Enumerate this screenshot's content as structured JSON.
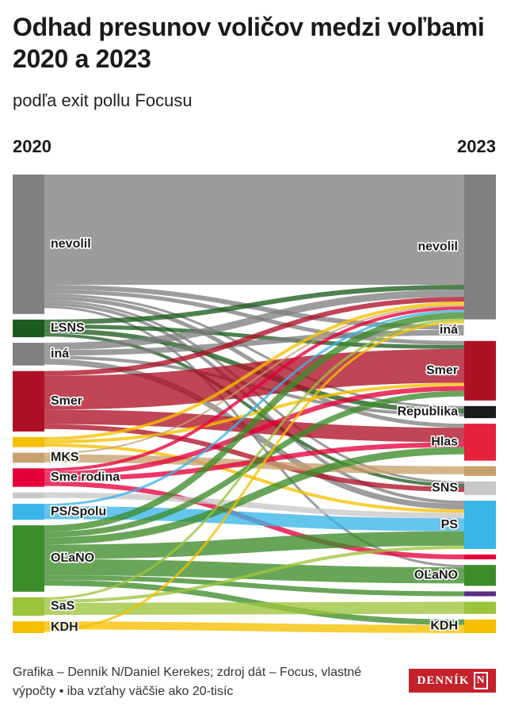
{
  "header": {
    "title": "Odhad presunov voličov medzi voľbami 2020 a 2023",
    "subtitle": "podľa exit pollu Focusu"
  },
  "year_left": "2020",
  "year_right": "2023",
  "chart_data": {
    "type": "sankey",
    "unit": "thousand voters (approx.)",
    "left_nodes": [
      {
        "id": "nevolil",
        "label": "nevolil",
        "value": 1660,
        "color": "#808080"
      },
      {
        "id": "lsns",
        "label": "ĽSNS",
        "value": 210,
        "color": "#1d5c1f"
      },
      {
        "id": "ina",
        "label": "iná",
        "value": 270,
        "color": "#808080"
      },
      {
        "id": "smer",
        "label": "Smer",
        "value": 720,
        "color": "#ae1126"
      },
      {
        "id": "sr",
        "label": "",
        "value": 120,
        "color": "#f5c000"
      },
      {
        "id": "mks",
        "label": "MKS",
        "value": 120,
        "color": "#c8a06e"
      },
      {
        "id": "smerodina",
        "label": "Sme rodina",
        "value": 220,
        "color": "#e5003b"
      },
      {
        "id": "za",
        "label": "",
        "value": 70,
        "color": "#c8c8c8"
      },
      {
        "id": "psspolu",
        "label": "PS/Spolu",
        "value": 190,
        "color": "#39b5e8"
      },
      {
        "id": "olano",
        "label": "OĽaNO",
        "value": 790,
        "color": "#3d8c2a"
      },
      {
        "id": "sas",
        "label": "SaS",
        "value": 220,
        "color": "#9cc43c"
      },
      {
        "id": "kdh",
        "label": "KDH",
        "value": 140,
        "color": "#f5c000"
      }
    ],
    "right_nodes": [
      {
        "id": "nevolil",
        "label": "nevolil",
        "value": 1800,
        "color": "#808080"
      },
      {
        "id": "ina",
        "label": "iná",
        "value": 130,
        "color": "#ffffff"
      },
      {
        "id": "smer",
        "label": "Smer",
        "value": 740,
        "color": "#ae1126"
      },
      {
        "id": "republika",
        "label": "Republika",
        "value": 150,
        "color": "#1a1a1a"
      },
      {
        "id": "hlas",
        "label": "Hlas",
        "value": 460,
        "color": "#e5213c"
      },
      {
        "id": "r_mks",
        "label": "",
        "value": 120,
        "color": "#c8a06e"
      },
      {
        "id": "sns",
        "label": "SNS",
        "value": 170,
        "color": "#c8c8c8"
      },
      {
        "id": "ps",
        "label": "PS",
        "value": 600,
        "color": "#39b5e8"
      },
      {
        "id": "r_sr",
        "label": "",
        "value": 60,
        "color": "#e5003b"
      },
      {
        "id": "olano",
        "label": "OĽaNO",
        "value": 260,
        "color": "#3d8c2a"
      },
      {
        "id": "r_dv",
        "label": "",
        "value": 60,
        "color": "#5b2d83"
      },
      {
        "id": "r_sas",
        "label": "",
        "value": 150,
        "color": "#9cc43c"
      },
      {
        "id": "kdh",
        "label": "KDH",
        "value": 170,
        "color": "#f5c000"
      }
    ],
    "links": [
      {
        "from": "nevolil",
        "to": "nevolil",
        "value": 1370
      },
      {
        "from": "nevolil",
        "to": "ina",
        "value": 60
      },
      {
        "from": "nevolil",
        "to": "smer",
        "value": 50
      },
      {
        "from": "nevolil",
        "to": "republika",
        "value": 30
      },
      {
        "from": "nevolil",
        "to": "hlas",
        "value": 50
      },
      {
        "from": "nevolil",
        "to": "sns",
        "value": 30
      },
      {
        "from": "nevolil",
        "to": "ps",
        "value": 40
      },
      {
        "from": "nevolil",
        "to": "olano",
        "value": 30
      },
      {
        "from": "lsns",
        "to": "nevolil",
        "value": 60
      },
      {
        "from": "lsns",
        "to": "smer",
        "value": 50
      },
      {
        "from": "lsns",
        "to": "republika",
        "value": 60
      },
      {
        "from": "lsns",
        "to": "sns",
        "value": 40
      },
      {
        "from": "ina",
        "to": "nevolil",
        "value": 90
      },
      {
        "from": "ina",
        "to": "ina",
        "value": 70
      },
      {
        "from": "ina",
        "to": "republika",
        "value": 40
      },
      {
        "from": "ina",
        "to": "ps",
        "value": 70
      },
      {
        "from": "smer",
        "to": "nevolil",
        "value": 60
      },
      {
        "from": "smer",
        "to": "smer",
        "value": 420
      },
      {
        "from": "smer",
        "to": "hlas",
        "value": 180
      },
      {
        "from": "smer",
        "to": "sns",
        "value": 60
      },
      {
        "from": "sr",
        "to": "nevolil",
        "value": 40
      },
      {
        "from": "sr",
        "to": "smer",
        "value": 40
      },
      {
        "from": "sr",
        "to": "ps",
        "value": 40
      },
      {
        "from": "mks",
        "to": "nevolil",
        "value": 20
      },
      {
        "from": "mks",
        "to": "r_mks",
        "value": 100
      },
      {
        "from": "smerodina",
        "to": "nevolil",
        "value": 40
      },
      {
        "from": "smerodina",
        "to": "smer",
        "value": 60
      },
      {
        "from": "smerodina",
        "to": "hlas",
        "value": 60
      },
      {
        "from": "smerodina",
        "to": "r_sr",
        "value": 60
      },
      {
        "from": "za",
        "to": "ps",
        "value": 70
      },
      {
        "from": "psspolu",
        "to": "nevolil",
        "value": 30
      },
      {
        "from": "psspolu",
        "to": "ps",
        "value": 160
      },
      {
        "from": "olano",
        "to": "nevolil",
        "value": 80
      },
      {
        "from": "olano",
        "to": "smer",
        "value": 70
      },
      {
        "from": "olano",
        "to": "hlas",
        "value": 90
      },
      {
        "from": "olano",
        "to": "ps",
        "value": 180
      },
      {
        "from": "olano",
        "to": "olano",
        "value": 200
      },
      {
        "from": "olano",
        "to": "r_dv",
        "value": 60
      },
      {
        "from": "olano",
        "to": "kdh",
        "value": 70
      },
      {
        "from": "sas",
        "to": "nevolil",
        "value": 30
      },
      {
        "from": "sas",
        "to": "ps",
        "value": 40
      },
      {
        "from": "sas",
        "to": "r_sas",
        "value": 150
      },
      {
        "from": "kdh",
        "to": "kdh",
        "value": 100
      },
      {
        "from": "kdh",
        "to": "nevolil",
        "value": 30
      }
    ]
  },
  "footer": {
    "credit": "Grafika – Denník N/Daniel Kerekes; zdroj dát – Focus, vlastné výpočty • iba vzťahy väčšie ako 20-tisíc",
    "logo_text": "DENNÍK",
    "logo_mark": "N"
  }
}
